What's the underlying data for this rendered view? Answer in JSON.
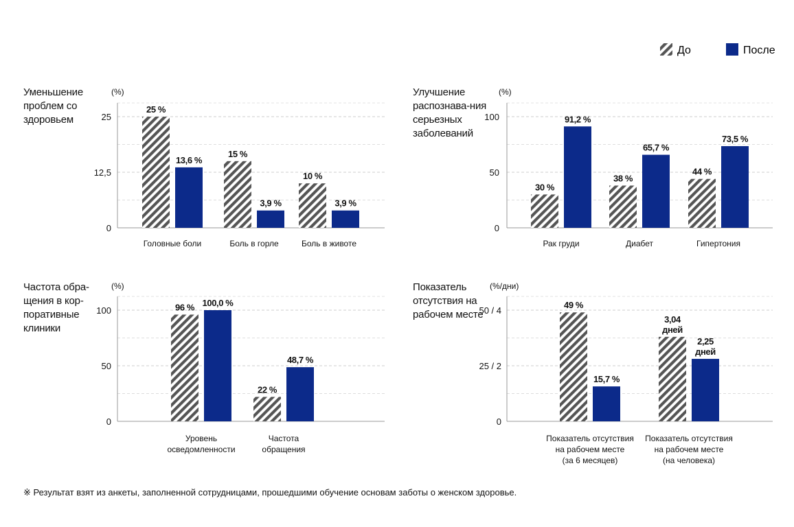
{
  "legend": {
    "before_label": "До",
    "after_label": "После",
    "colors": {
      "before": "#555555",
      "after": "#0c2a8a"
    }
  },
  "chart_data": [
    {
      "type": "bar",
      "title": "Уменьшение проблем со здоровьем",
      "unit_label": "(%)",
      "yticks": [
        0,
        12.5,
        25
      ],
      "ytick_labels": [
        "0",
        "12,5",
        "25"
      ],
      "ylim": [
        0,
        28
      ],
      "categories": [
        [
          "Головные боли"
        ],
        [
          "Боль в горле"
        ],
        [
          "Боль в животе"
        ]
      ],
      "series": [
        {
          "name": "До",
          "values": [
            25,
            15,
            10
          ],
          "labels": [
            [
              "25 %"
            ],
            [
              "15 %"
            ],
            [
              "10 %"
            ]
          ]
        },
        {
          "name": "После",
          "values": [
            13.6,
            3.9,
            3.9
          ],
          "labels": [
            [
              "13,6 %"
            ],
            [
              "3,9 %"
            ],
            [
              "3,9 %"
            ]
          ]
        }
      ]
    },
    {
      "type": "bar",
      "title": "Улучшение распознава-ния серьезных заболеваний",
      "unit_label": "(%)",
      "yticks": [
        0,
        50,
        100
      ],
      "ytick_labels": [
        "0",
        "50",
        "100"
      ],
      "ylim": [
        0,
        112
      ],
      "categories": [
        [
          "Рак груди"
        ],
        [
          "Диабет"
        ],
        [
          "Гипертония"
        ]
      ],
      "series": [
        {
          "name": "До",
          "values": [
            30,
            38,
            44
          ],
          "labels": [
            [
              "30 %"
            ],
            [
              "38 %"
            ],
            [
              "44 %"
            ]
          ]
        },
        {
          "name": "После",
          "values": [
            91.2,
            65.7,
            73.5
          ],
          "labels": [
            [
              "91,2 %"
            ],
            [
              "65,7 %"
            ],
            [
              "73,5 %"
            ]
          ]
        }
      ]
    },
    {
      "type": "bar",
      "title": "Частота обра-щения в кор-поративные клиники",
      "unit_label": "(%)",
      "yticks": [
        0,
        50,
        100
      ],
      "ytick_labels": [
        "0",
        "50",
        "100"
      ],
      "ylim": [
        0,
        112
      ],
      "categories": [
        [
          "Уровень",
          "осведомленности"
        ],
        [
          "Частота",
          "обращения"
        ]
      ],
      "series": [
        {
          "name": "До",
          "values": [
            96,
            22
          ],
          "labels": [
            [
              "96 %"
            ],
            [
              "22 %"
            ]
          ]
        },
        {
          "name": "После",
          "values": [
            100,
            48.7
          ],
          "labels": [
            [
              "100,0 %"
            ],
            [
              "48,7 %"
            ]
          ]
        }
      ]
    },
    {
      "type": "bar",
      "title": "Показатель отсутствия на рабочем месте",
      "unit_label": "(%/дни)",
      "yticks": [
        0,
        25,
        50
      ],
      "ytick_labels": [
        "0",
        "25 / 2",
        "50 / 4"
      ],
      "ylim": [
        0,
        56
      ],
      "categories": [
        [
          "Показатель отсутствия",
          "на рабочем месте",
          "(за 6 месяцев)"
        ],
        [
          "Показатель отсутствия",
          "на рабочем месте",
          "(на человека)"
        ]
      ],
      "series": [
        {
          "name": "До",
          "values": [
            49,
            38
          ],
          "labels": [
            [
              "49 %"
            ],
            [
              "3,04",
              "дней"
            ]
          ]
        },
        {
          "name": "После",
          "values": [
            15.7,
            28.1
          ],
          "labels": [
            [
              "15,7 %"
            ],
            [
              "2,25",
              "дней"
            ]
          ]
        }
      ]
    }
  ],
  "footnote": "※ Результат взят из анкеты, заполненной сотрудницами, прошедшими обучение основам заботы о женском здоровье."
}
